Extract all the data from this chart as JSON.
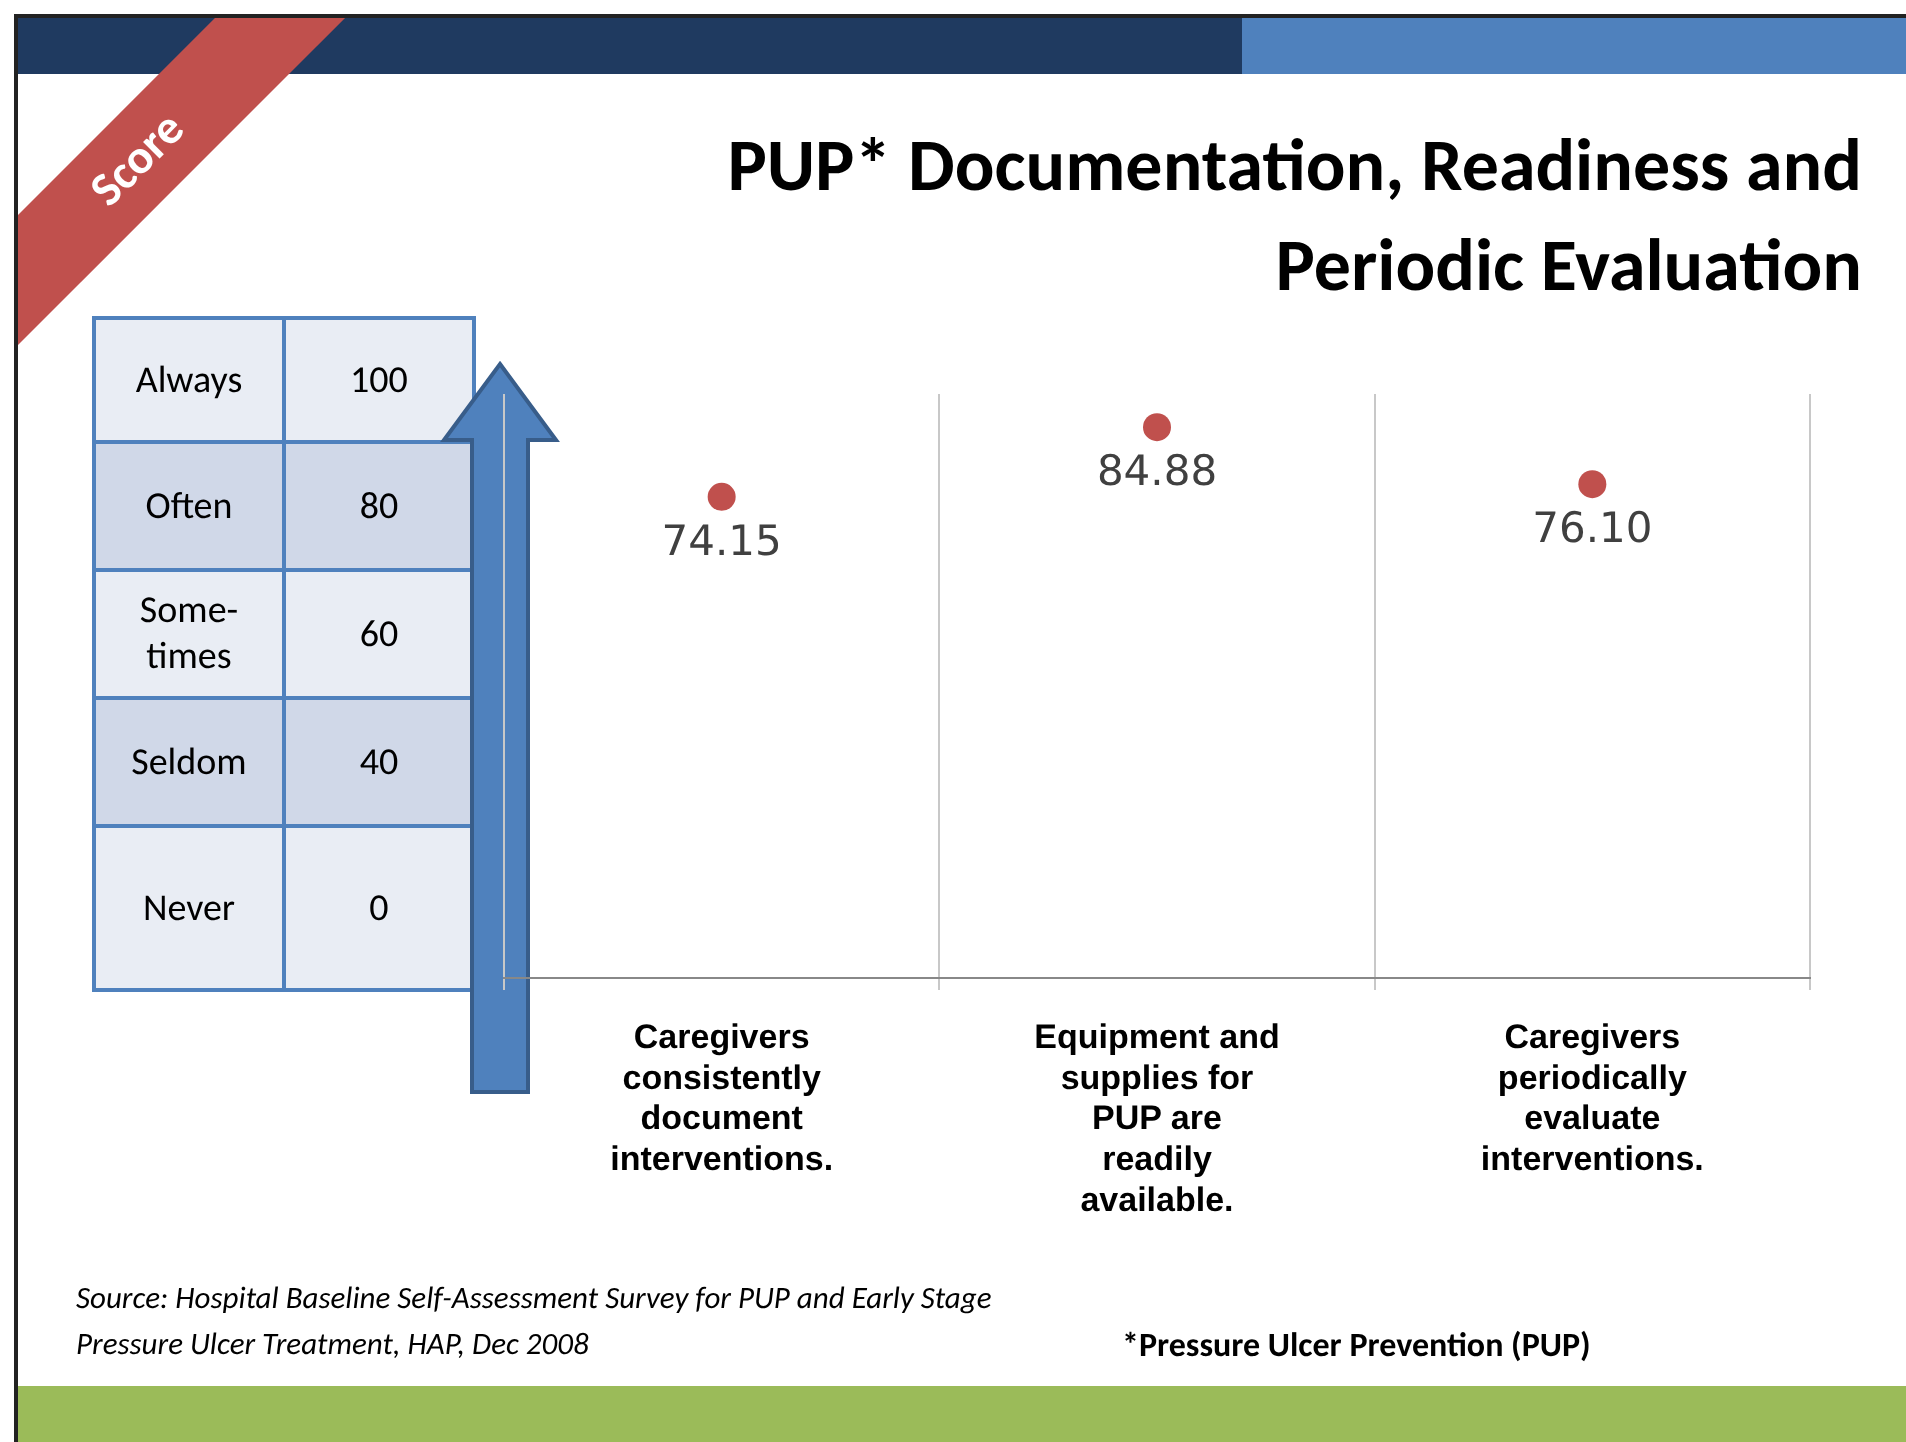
{
  "chart_data": {
    "type": "scatter",
    "title": "PUP* Documentation, Readiness and Periodic Evaluation",
    "categories": [
      "Caregivers consistently document interventions.",
      "Equipment and supplies for PUP are readily available.",
      "Caregivers periodically evaluate interventions."
    ],
    "series": [
      {
        "color": "#c0504d",
        "values": [
          74.15,
          84.88,
          76.1
        ],
        "value_labels": [
          "74.15",
          "84.88",
          "76.10"
        ]
      }
    ],
    "grid": "x",
    "tick_labels": "x",
    "marker": "circle",
    "legend": false,
    "annotations": [
      "Score",
      "Always",
      "100",
      "Often",
      "80",
      "Some-times",
      "60",
      "Seldom",
      "40",
      "Never",
      "0",
      "Source: Hospital Baseline Self-Assessment Survey for PUP and Early Stage Pressure Ulcer Treatment, HAP, Dec 2008",
      "*Pressure Ulcer Prevention (PUP)"
    ]
  }
}
